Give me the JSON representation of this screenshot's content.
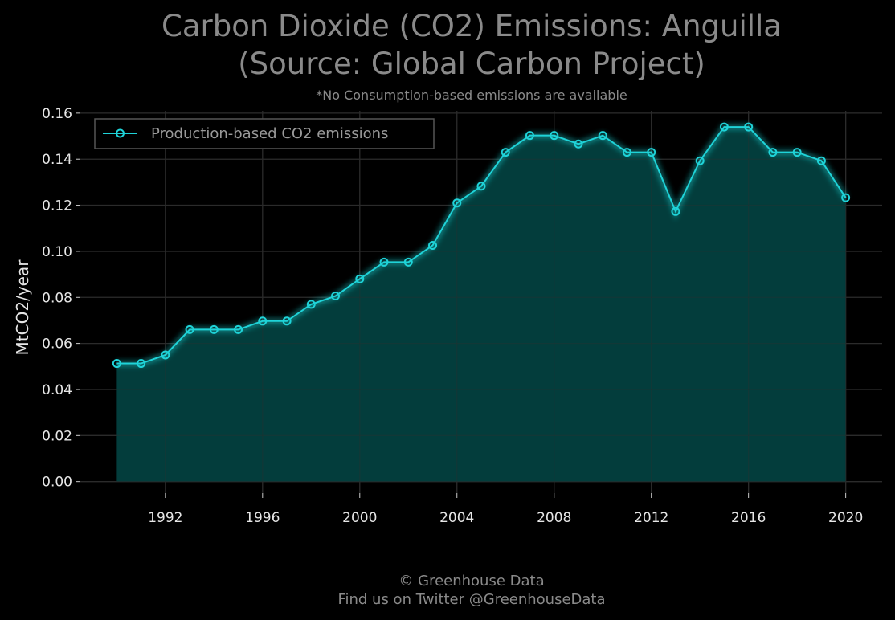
{
  "chart_data": {
    "type": "area",
    "title_lines": [
      "Carbon Dioxide (CO2) Emissions: Anguilla",
      "(Source: Global Carbon Project)"
    ],
    "subtitle": "*No Consumption-based emissions are available",
    "xlabel": "",
    "ylabel": "MtCO2/year",
    "x": [
      1990,
      1991,
      1992,
      1993,
      1994,
      1995,
      1996,
      1997,
      1998,
      1999,
      2000,
      2001,
      2002,
      2003,
      2004,
      2005,
      2006,
      2007,
      2008,
      2009,
      2010,
      2011,
      2012,
      2013,
      2014,
      2015,
      2016,
      2017,
      2018,
      2019,
      2020
    ],
    "series": [
      {
        "name": "Production-based CO2 emissions",
        "color": "#1fd3d8",
        "values": [
          0.0513,
          0.0513,
          0.055,
          0.066,
          0.066,
          0.066,
          0.0697,
          0.0697,
          0.077,
          0.0806,
          0.088,
          0.0953,
          0.0953,
          0.1026,
          0.121,
          0.1283,
          0.143,
          0.1503,
          0.1503,
          0.1466,
          0.1503,
          0.143,
          0.143,
          0.1173,
          0.1393,
          0.154,
          0.154,
          0.143,
          0.143,
          0.1393,
          0.1233
        ]
      }
    ],
    "xticks": [
      1992,
      1996,
      2000,
      2004,
      2008,
      2012,
      2016,
      2020
    ],
    "xtick_labels": [
      "1992",
      "1996",
      "2000",
      "2004",
      "2008",
      "2012",
      "2016",
      "2020"
    ],
    "yticks": [
      0.0,
      0.02,
      0.04,
      0.06,
      0.08,
      0.1,
      0.12,
      0.14,
      0.16
    ],
    "ytick_labels": [
      "0.00",
      "0.02",
      "0.04",
      "0.06",
      "0.08",
      "0.10",
      "0.12",
      "0.14",
      "0.16"
    ],
    "xlim": [
      1988.5,
      2021.5
    ],
    "ylim": [
      -0.005,
      0.161
    ],
    "grid": true,
    "legend_position": "top-left",
    "fill_color": "#03403f",
    "background_color": "#000000"
  },
  "footer": {
    "line1": "© Greenhouse Data",
    "line2": "Find us on Twitter @GreenhouseData"
  }
}
